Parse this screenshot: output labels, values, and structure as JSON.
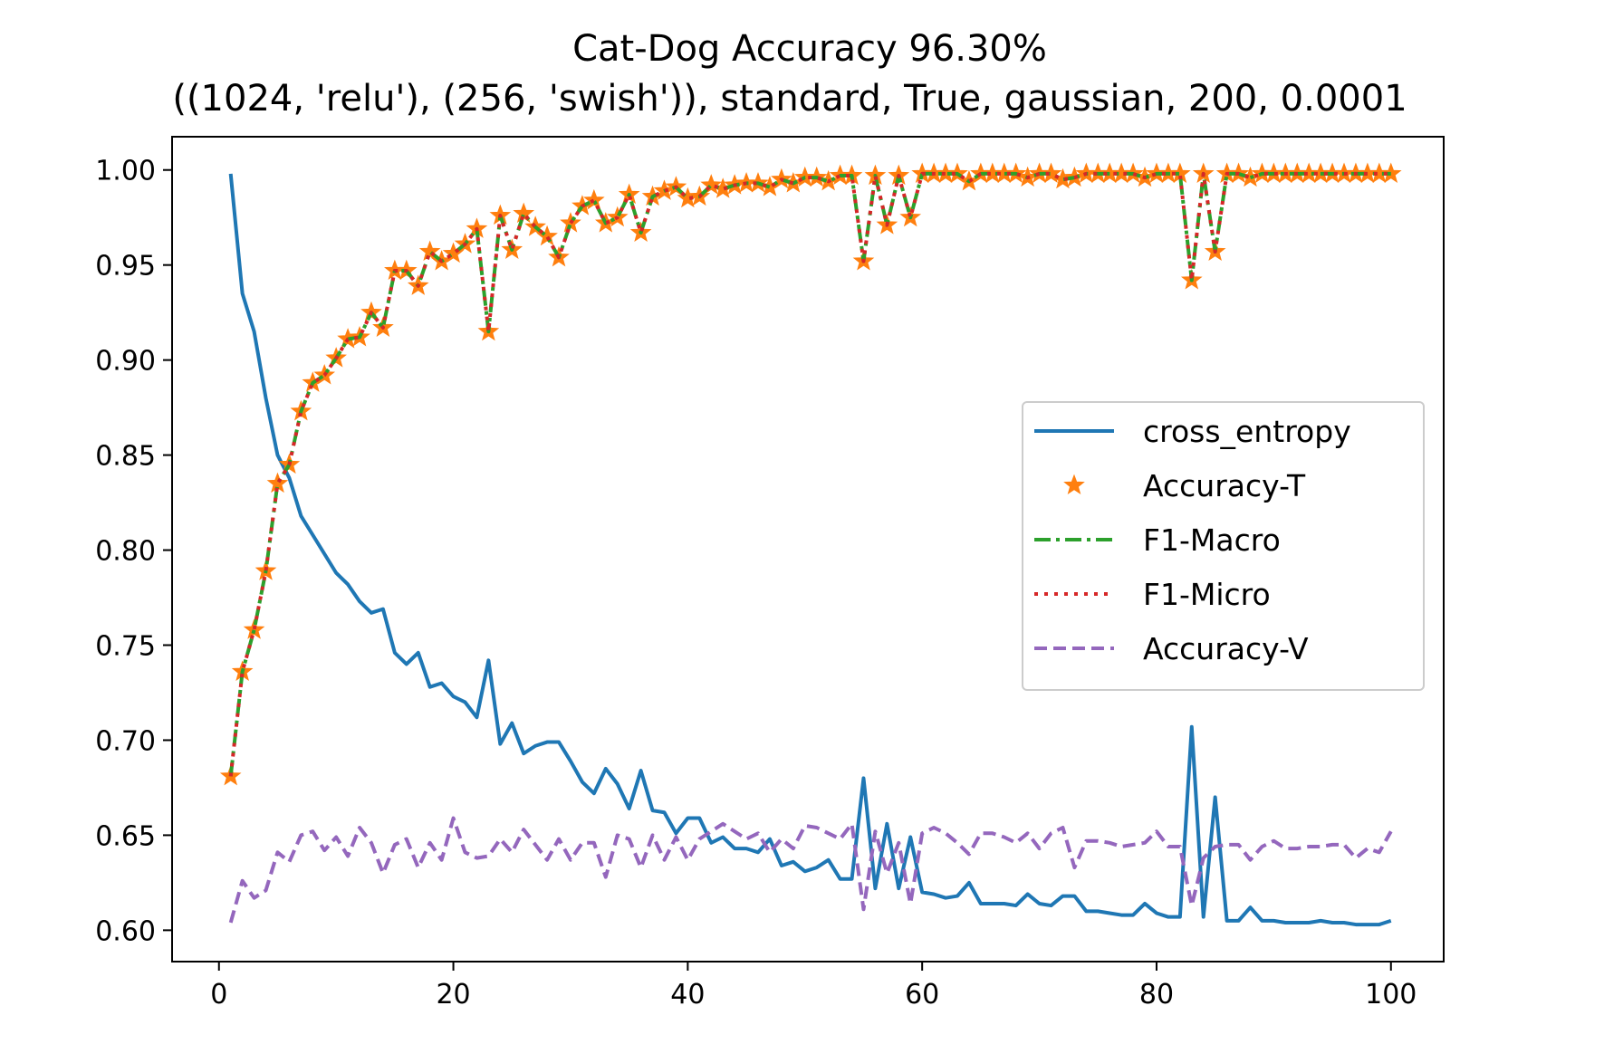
{
  "chart_data": {
    "type": "line",
    "title": "Cat-Dog Accuracy 96.30%",
    "subtitle": "((1024, 'relu'), (256, 'swish')), standard, True, gaussian, 200, 0.0001",
    "xlabel": "",
    "ylabel": "",
    "xlim": [
      -4,
      104.5
    ],
    "ylim": [
      0.5835,
      1.0175
    ],
    "xticks": [
      "0",
      "20",
      "40",
      "60",
      "80",
      "100"
    ],
    "yticks": [
      "0.60",
      "0.65",
      "0.70",
      "0.75",
      "0.80",
      "0.85",
      "0.90",
      "0.95",
      "1.00"
    ],
    "grid": false,
    "legend_placement": "center-right",
    "colors": {
      "cross_entropy": "#1f77b4",
      "accuracy_t": "#ff7f0e",
      "f1_macro": "#2ca02c",
      "f1_micro": "#d62728",
      "accuracy_v": "#9467bd"
    },
    "x": [
      1,
      2,
      3,
      4,
      5,
      6,
      7,
      8,
      9,
      10,
      11,
      12,
      13,
      14,
      15,
      16,
      17,
      18,
      19,
      20,
      21,
      22,
      23,
      24,
      25,
      26,
      27,
      28,
      29,
      30,
      31,
      32,
      33,
      34,
      35,
      36,
      37,
      38,
      39,
      40,
      41,
      42,
      43,
      44,
      45,
      46,
      47,
      48,
      49,
      50,
      51,
      52,
      53,
      54,
      55,
      56,
      57,
      58,
      59,
      60,
      61,
      62,
      63,
      64,
      65,
      66,
      67,
      68,
      69,
      70,
      71,
      72,
      73,
      74,
      75,
      76,
      77,
      78,
      79,
      80,
      81,
      82,
      83,
      84,
      85,
      86,
      87,
      88,
      89,
      90,
      91,
      92,
      93,
      94,
      95,
      96,
      97,
      98,
      99,
      100
    ],
    "series": [
      {
        "name": "cross_entropy",
        "style": "solid",
        "values": [
          0.998,
          0.935,
          0.915,
          0.88,
          0.85,
          0.838,
          0.818,
          0.808,
          0.798,
          0.788,
          0.782,
          0.773,
          0.767,
          0.769,
          0.746,
          0.74,
          0.746,
          0.728,
          0.73,
          0.723,
          0.72,
          0.712,
          0.742,
          0.698,
          0.709,
          0.693,
          0.697,
          0.699,
          0.699,
          0.689,
          0.678,
          0.672,
          0.685,
          0.677,
          0.664,
          0.684,
          0.663,
          0.662,
          0.651,
          0.659,
          0.659,
          0.646,
          0.649,
          0.643,
          0.643,
          0.641,
          0.648,
          0.634,
          0.636,
          0.631,
          0.633,
          0.637,
          0.627,
          0.627,
          0.68,
          0.622,
          0.656,
          0.622,
          0.649,
          0.62,
          0.619,
          0.617,
          0.618,
          0.625,
          0.614,
          0.614,
          0.614,
          0.613,
          0.619,
          0.614,
          0.613,
          0.618,
          0.618,
          0.61,
          0.61,
          0.609,
          0.608,
          0.608,
          0.614,
          0.609,
          0.607,
          0.607,
          0.707,
          0.607,
          0.67,
          0.605,
          0.605,
          0.612,
          0.605,
          0.605,
          0.604,
          0.604,
          0.604,
          0.605,
          0.604,
          0.604,
          0.603,
          0.603,
          0.603,
          0.605
        ]
      },
      {
        "name": "Accuracy-T",
        "style": "star-markers",
        "values": [
          0.681,
          0.736,
          0.758,
          0.789,
          0.835,
          0.845,
          0.873,
          0.888,
          0.892,
          0.901,
          0.911,
          0.912,
          0.925,
          0.917,
          0.947,
          0.947,
          0.939,
          0.957,
          0.952,
          0.956,
          0.961,
          0.969,
          0.915,
          0.976,
          0.958,
          0.977,
          0.97,
          0.965,
          0.954,
          0.972,
          0.981,
          0.984,
          0.972,
          0.975,
          0.987,
          0.967,
          0.986,
          0.989,
          0.991,
          0.985,
          0.986,
          0.992,
          0.99,
          0.992,
          0.993,
          0.993,
          0.991,
          0.995,
          0.993,
          0.996,
          0.996,
          0.994,
          0.997,
          0.997,
          0.952,
          0.997,
          0.971,
          0.997,
          0.975,
          0.998,
          0.998,
          0.998,
          0.998,
          0.994,
          0.998,
          0.998,
          0.998,
          0.998,
          0.996,
          0.998,
          0.998,
          0.995,
          0.996,
          0.998,
          0.998,
          0.998,
          0.998,
          0.998,
          0.996,
          0.998,
          0.998,
          0.998,
          0.942,
          0.998,
          0.957,
          0.998,
          0.998,
          0.996,
          0.998,
          0.998,
          0.998,
          0.998,
          0.998,
          0.998,
          0.998,
          0.998,
          0.998,
          0.998,
          0.998,
          0.998
        ]
      },
      {
        "name": "F1-Macro",
        "style": "dash-dot",
        "values": [
          0.681,
          0.736,
          0.758,
          0.789,
          0.835,
          0.845,
          0.873,
          0.888,
          0.892,
          0.901,
          0.911,
          0.912,
          0.925,
          0.917,
          0.947,
          0.947,
          0.939,
          0.957,
          0.952,
          0.956,
          0.961,
          0.969,
          0.915,
          0.976,
          0.958,
          0.977,
          0.97,
          0.965,
          0.954,
          0.972,
          0.981,
          0.984,
          0.972,
          0.975,
          0.987,
          0.967,
          0.986,
          0.989,
          0.991,
          0.985,
          0.986,
          0.992,
          0.99,
          0.992,
          0.993,
          0.993,
          0.991,
          0.995,
          0.993,
          0.996,
          0.996,
          0.994,
          0.997,
          0.997,
          0.952,
          0.997,
          0.971,
          0.997,
          0.975,
          0.998,
          0.998,
          0.998,
          0.998,
          0.994,
          0.998,
          0.998,
          0.998,
          0.998,
          0.996,
          0.998,
          0.998,
          0.995,
          0.996,
          0.998,
          0.998,
          0.998,
          0.998,
          0.998,
          0.996,
          0.998,
          0.998,
          0.998,
          0.942,
          0.998,
          0.957,
          0.998,
          0.998,
          0.996,
          0.998,
          0.998,
          0.998,
          0.998,
          0.998,
          0.998,
          0.998,
          0.998,
          0.998,
          0.998,
          0.998,
          0.998
        ]
      },
      {
        "name": "F1-Micro",
        "style": "dotted",
        "values": [
          0.681,
          0.736,
          0.758,
          0.789,
          0.835,
          0.845,
          0.873,
          0.888,
          0.892,
          0.901,
          0.911,
          0.912,
          0.925,
          0.917,
          0.947,
          0.947,
          0.939,
          0.957,
          0.952,
          0.956,
          0.961,
          0.969,
          0.915,
          0.976,
          0.958,
          0.977,
          0.97,
          0.965,
          0.954,
          0.972,
          0.981,
          0.984,
          0.972,
          0.975,
          0.987,
          0.967,
          0.986,
          0.989,
          0.991,
          0.985,
          0.986,
          0.992,
          0.99,
          0.992,
          0.993,
          0.993,
          0.991,
          0.995,
          0.993,
          0.996,
          0.996,
          0.994,
          0.997,
          0.997,
          0.952,
          0.997,
          0.971,
          0.997,
          0.975,
          0.998,
          0.998,
          0.998,
          0.998,
          0.994,
          0.998,
          0.998,
          0.998,
          0.998,
          0.996,
          0.998,
          0.998,
          0.995,
          0.996,
          0.998,
          0.998,
          0.998,
          0.998,
          0.998,
          0.996,
          0.998,
          0.998,
          0.998,
          0.942,
          0.998,
          0.957,
          0.998,
          0.998,
          0.996,
          0.998,
          0.998,
          0.998,
          0.998,
          0.998,
          0.998,
          0.998,
          0.998,
          0.998,
          0.998,
          0.998,
          0.998
        ]
      },
      {
        "name": "Accuracy-V",
        "style": "dashed",
        "values": [
          0.604,
          0.626,
          0.617,
          0.621,
          0.641,
          0.636,
          0.65,
          0.652,
          0.642,
          0.649,
          0.639,
          0.654,
          0.646,
          0.63,
          0.645,
          0.648,
          0.633,
          0.646,
          0.637,
          0.659,
          0.641,
          0.638,
          0.639,
          0.648,
          0.641,
          0.653,
          0.645,
          0.637,
          0.648,
          0.637,
          0.646,
          0.646,
          0.628,
          0.65,
          0.648,
          0.633,
          0.65,
          0.637,
          0.649,
          0.637,
          0.648,
          0.652,
          0.656,
          0.652,
          0.648,
          0.651,
          0.641,
          0.648,
          0.643,
          0.655,
          0.654,
          0.651,
          0.648,
          0.656,
          0.611,
          0.652,
          0.63,
          0.646,
          0.614,
          0.651,
          0.654,
          0.651,
          0.646,
          0.64,
          0.651,
          0.651,
          0.649,
          0.646,
          0.651,
          0.643,
          0.651,
          0.654,
          0.633,
          0.647,
          0.647,
          0.646,
          0.644,
          0.645,
          0.646,
          0.652,
          0.644,
          0.644,
          0.613,
          0.638,
          0.644,
          0.645,
          0.645,
          0.637,
          0.644,
          0.647,
          0.643,
          0.643,
          0.644,
          0.644,
          0.645,
          0.645,
          0.638,
          0.643,
          0.641,
          0.652
        ]
      }
    ]
  }
}
